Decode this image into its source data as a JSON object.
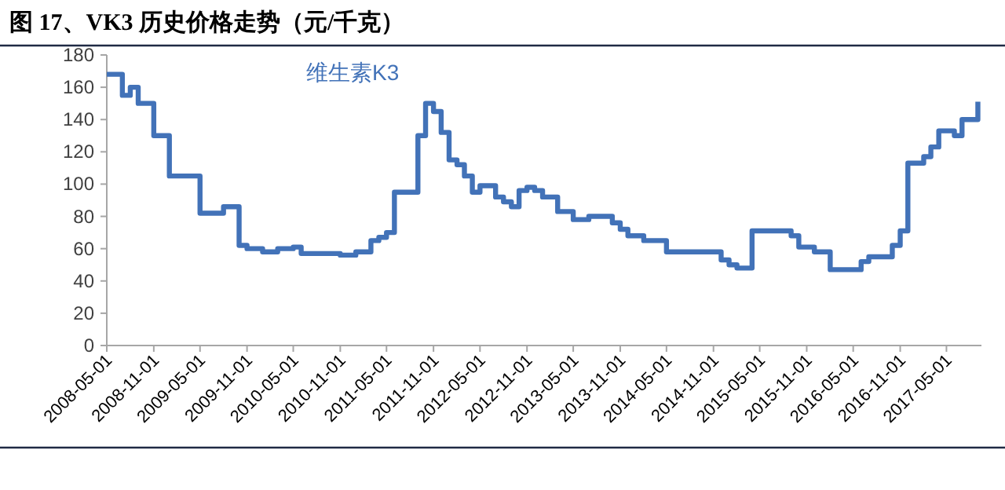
{
  "chart_data": {
    "type": "step",
    "title": "图 17、VK3 历史价格走势（元/千克）",
    "x": [
      "2008-05",
      "2008-07",
      "2008-08",
      "2008-09",
      "2008-11",
      "2009-01",
      "2009-05",
      "2009-08",
      "2009-10",
      "2009-11",
      "2010-01",
      "2010-03",
      "2010-05",
      "2010-06",
      "2010-11",
      "2011-01",
      "2011-03",
      "2011-04",
      "2011-05",
      "2011-06",
      "2011-09",
      "2011-10",
      "2011-11",
      "2011-12",
      "2012-01",
      "2012-02",
      "2012-03",
      "2012-04",
      "2012-05",
      "2012-07",
      "2012-08",
      "2012-09",
      "2012-10",
      "2012-11",
      "2012-12",
      "2013-01",
      "2013-03",
      "2013-05",
      "2013-07",
      "2013-10",
      "2013-11",
      "2013-12",
      "2014-02",
      "2014-05",
      "2014-12",
      "2015-01",
      "2015-02",
      "2015-04",
      "2015-09",
      "2015-10",
      "2015-12",
      "2016-02",
      "2016-06",
      "2016-07",
      "2016-10",
      "2016-11",
      "2016-12",
      "2017-02",
      "2017-03",
      "2017-04",
      "2017-06",
      "2017-07",
      "2017-09"
    ],
    "series": [
      {
        "name": "维生素K3",
        "color": "#4272b8",
        "values": [
          168,
          155,
          160,
          150,
          130,
          105,
          82,
          86,
          62,
          60,
          58,
          60,
          61,
          57,
          56,
          58,
          65,
          67,
          70,
          95,
          130,
          150,
          145,
          132,
          115,
          112,
          105,
          95,
          99,
          92,
          89,
          86,
          96,
          98,
          96,
          92,
          83,
          78,
          80,
          76,
          72,
          68,
          65,
          58,
          53,
          50,
          48,
          71,
          68,
          61,
          58,
          47,
          52,
          55,
          62,
          71,
          113,
          117,
          123,
          133,
          130,
          140,
          151
        ]
      }
    ],
    "xlim": [
      "2008-05-01",
      "2017-09-15"
    ],
    "xticks": [
      "2008-05-01",
      "2008-11-01",
      "2009-05-01",
      "2009-11-01",
      "2010-05-01",
      "2010-11-01",
      "2011-05-01",
      "2011-11-01",
      "2012-05-01",
      "2012-11-01",
      "2013-05-01",
      "2013-11-01",
      "2014-05-01",
      "2014-11-01",
      "2015-05-01",
      "2015-11-01",
      "2016-05-01",
      "2016-11-01",
      "2017-05-01"
    ],
    "ylim": [
      0,
      180
    ],
    "yticks": [
      0,
      20,
      40,
      60,
      80,
      100,
      120,
      140,
      160,
      180
    ]
  }
}
